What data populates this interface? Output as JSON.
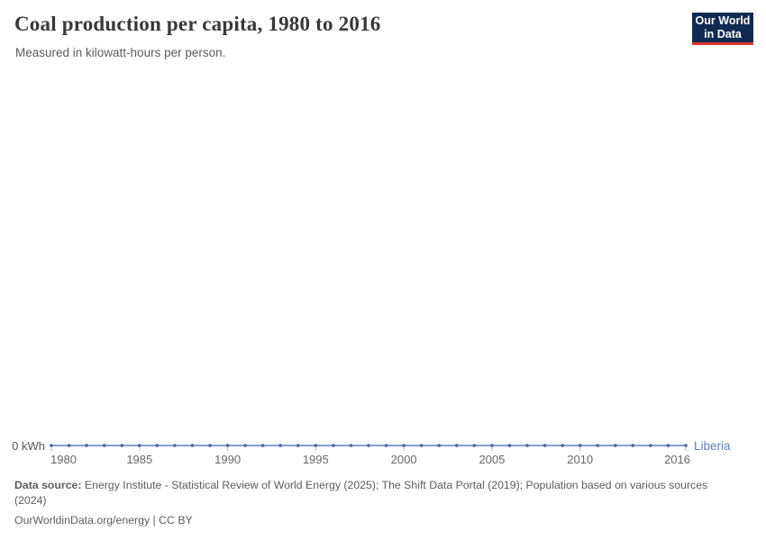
{
  "header": {
    "title": "Coal production per capita, 1980 to 2016",
    "subtitle": "Measured in kilowatt-hours per person.",
    "logo": {
      "line1": "Our World",
      "line2": "in Data"
    }
  },
  "chart_data": {
    "type": "line",
    "title": "Coal production per capita, 1980 to 2016",
    "subtitle": "Measured in kilowatt-hours per person.",
    "x": [
      1980,
      1981,
      1982,
      1983,
      1984,
      1985,
      1986,
      1987,
      1988,
      1989,
      1990,
      1991,
      1992,
      1993,
      1994,
      1995,
      1996,
      1997,
      1998,
      1999,
      2000,
      2001,
      2002,
      2003,
      2004,
      2005,
      2006,
      2007,
      2008,
      2009,
      2010,
      2011,
      2012,
      2013,
      2014,
      2015,
      2016
    ],
    "series": [
      {
        "name": "Liberia",
        "color": "#5f7fbe",
        "marker_color": "#44639f",
        "values": [
          0,
          0,
          0,
          0,
          0,
          0,
          0,
          0,
          0,
          0,
          0,
          0,
          0,
          0,
          0,
          0,
          0,
          0,
          0,
          0,
          0,
          0,
          0,
          0,
          0,
          0,
          0,
          0,
          0,
          0,
          0,
          0,
          0,
          0,
          0,
          0,
          0
        ]
      }
    ],
    "x_ticks": [
      1980,
      1985,
      1990,
      1995,
      2000,
      2005,
      2010,
      2016
    ],
    "xlim": [
      1980,
      2016
    ],
    "ylim": [
      0,
      0
    ],
    "y_axis_label": "0 kWh",
    "grid": false,
    "legend_position": "end-of-line"
  },
  "footer": {
    "source_label": "Data source:",
    "source_line1": "Energy Institute - Statistical Review of World Energy (2025); The Shift Data Portal (2019); Population based on various sources",
    "source_line2": "(2024)",
    "license_line": "OurWorldinData.org/energy | CC BY"
  },
  "colors": {
    "line": "#5f7fbe",
    "marker": "#44639f",
    "axis_tick": "#a9b5ca",
    "axis_text": "#666666",
    "logo_bg": "#102a52",
    "logo_accent": "#dc352e"
  }
}
